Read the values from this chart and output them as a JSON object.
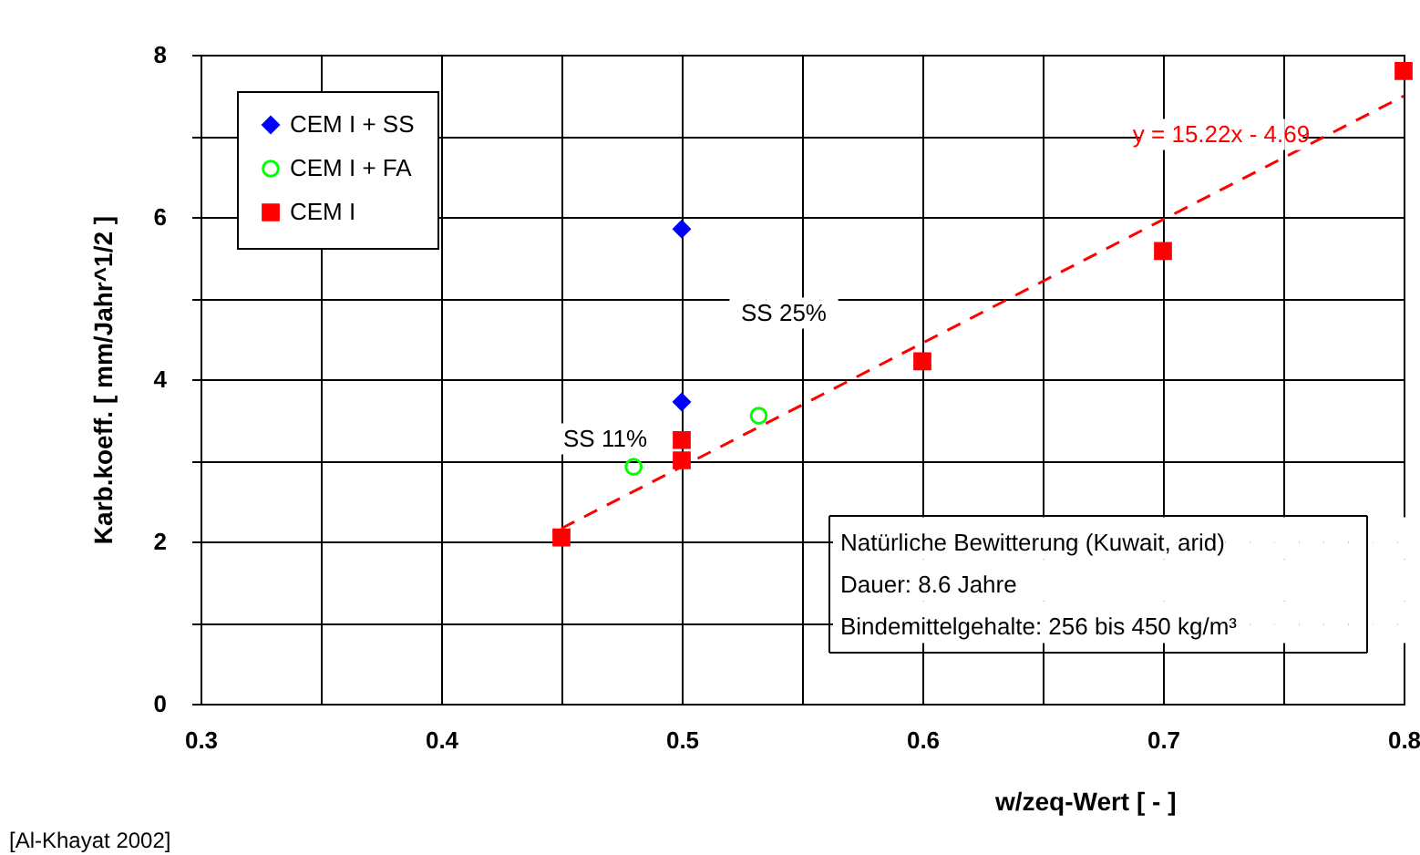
{
  "chart_data": {
    "type": "scatter",
    "xlabel": "w/zeq-Wert [ - ]",
    "ylabel": "Karb.koeff. [ mm/Jahr^1/2 ]",
    "xlim": [
      0.3,
      0.8
    ],
    "ylim": [
      0,
      8
    ],
    "xticks": [
      0.3,
      {
        "value": 0.35,
        "label": null
      },
      0.4,
      {
        "value": 0.45,
        "label": null
      },
      0.5,
      {
        "value": 0.55,
        "label": null
      },
      0.6,
      {
        "value": 0.65,
        "label": null
      },
      0.7,
      {
        "value": 0.75,
        "label": null
      },
      0.8
    ],
    "yticks": [
      0,
      {
        "value": 1,
        "label": null
      },
      2,
      {
        "value": 3,
        "label": null
      },
      4,
      {
        "value": 5,
        "label": null
      },
      6,
      {
        "value": 7,
        "label": null
      },
      8
    ],
    "grid": true,
    "legend": "top left",
    "series": [
      {
        "name": "CEM I + SS",
        "color": "#0000ff",
        "marker": "diamond",
        "x": [
          0.5,
          0.5
        ],
        "values": [
          5.85,
          3.72
        ]
      },
      {
        "name": "CEM I + FA",
        "color": "#00ff00",
        "marker": "circle",
        "x": [
          0.48,
          0.532
        ],
        "values": [
          2.92,
          3.55
        ]
      },
      {
        "name": "CEM I",
        "color": "#ff0000",
        "marker": "square",
        "x": [
          0.45,
          0.5,
          0.5,
          0.6,
          0.7,
          0.8
        ],
        "values": [
          2.05,
          3.0,
          3.25,
          4.22,
          5.58,
          7.8
        ]
      },
      {
        "type": "line",
        "color": "#ff0000",
        "line_style": "dashed",
        "x": [
          0.45,
          0.8
        ],
        "values": [
          2.16,
          7.49
        ]
      }
    ],
    "annotations": [
      "y = 15.22x - 4.69",
      "SS 25%",
      "SS 11%",
      "Natürliche Bewitterung (Kuwait, arid)",
      "Dauer: 8.6 Jahre",
      "Bindemittelgehalte: 256 bis 450 kg/m³",
      "[Al-Khayat 2002]"
    ]
  }
}
